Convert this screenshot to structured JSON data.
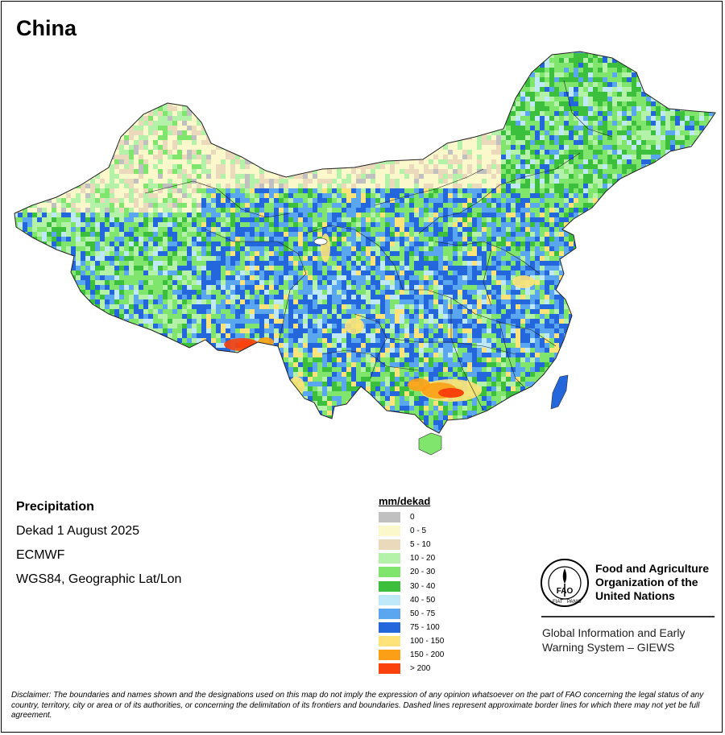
{
  "title": "China",
  "info": {
    "variable": "Precipitation",
    "period": "Dekad 1 August 2025",
    "source": "ECMWF",
    "projection": "WGS84, Geographic Lat/Lon"
  },
  "legend": {
    "title": "mm/dekad",
    "items": [
      {
        "label": "0",
        "color": "#c0c0c0"
      },
      {
        "label": "0 - 5",
        "color": "#fbf8cc"
      },
      {
        "label": "5 - 10",
        "color": "#ead9bb"
      },
      {
        "label": "10 - 20",
        "color": "#b4f1a9"
      },
      {
        "label": "20 - 30",
        "color": "#7fe56c"
      },
      {
        "label": "30 - 40",
        "color": "#3cbf3c"
      },
      {
        "label": "40 - 50",
        "color": "#bfe9f9"
      },
      {
        "label": "50 - 75",
        "color": "#5aa7ef"
      },
      {
        "label": "75 - 100",
        "color": "#2466dc"
      },
      {
        "label": "100 - 150",
        "color": "#fde37a"
      },
      {
        "label": "150 - 200",
        "color": "#fba016"
      },
      {
        "label": "> 200",
        "color": "#fa420c"
      }
    ]
  },
  "organization": {
    "line1": "Food and Agriculture",
    "line2": "Organization of the",
    "line3": "United Nations",
    "logo_text": "FAO",
    "logo_motto_left": "FIAT",
    "logo_motto_right": "PANIS"
  },
  "system": {
    "line1": "Global Information and Early",
    "line2": "Warning System – GIEWS"
  },
  "disclaimer": "Disclaimer: The boundaries and names shown and the designations used on this map do not imply the expression of any opinion whatsoever on the part of FAO concerning the legal status of any country, territory, city or area or of its authorities, or concerning the delimitation of its frontiers and boundaries. Dashed lines represent approximate border lines for which there may not yet be full agreement."
}
